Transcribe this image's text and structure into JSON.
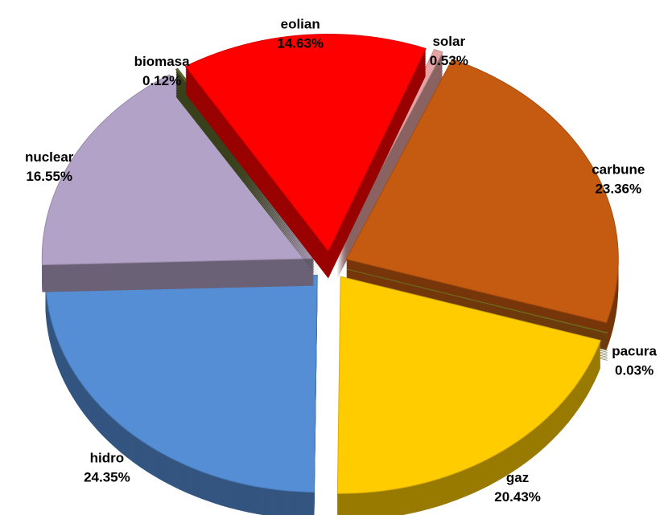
{
  "chart_data": {
    "type": "pie",
    "categories": [
      "solar",
      "carbune",
      "pacura",
      "gaz",
      "hidro",
      "nuclear",
      "biomasa",
      "eolian"
    ],
    "values": [
      0.53,
      23.36,
      0.03,
      20.43,
      24.35,
      16.55,
      0.12,
      14.63
    ],
    "value_labels": [
      "0.53%",
      "23.36%",
      "0.03%",
      "20.43%",
      "24.35%",
      "16.55%",
      "0.12%",
      "14.63%"
    ],
    "colors": [
      "#e6a3a3",
      "#c55a11",
      "#7f7f20",
      "#ffcc00",
      "#558ed5",
      "#b3a2c7",
      "#5f6b2e",
      "#ff0000"
    ]
  }
}
